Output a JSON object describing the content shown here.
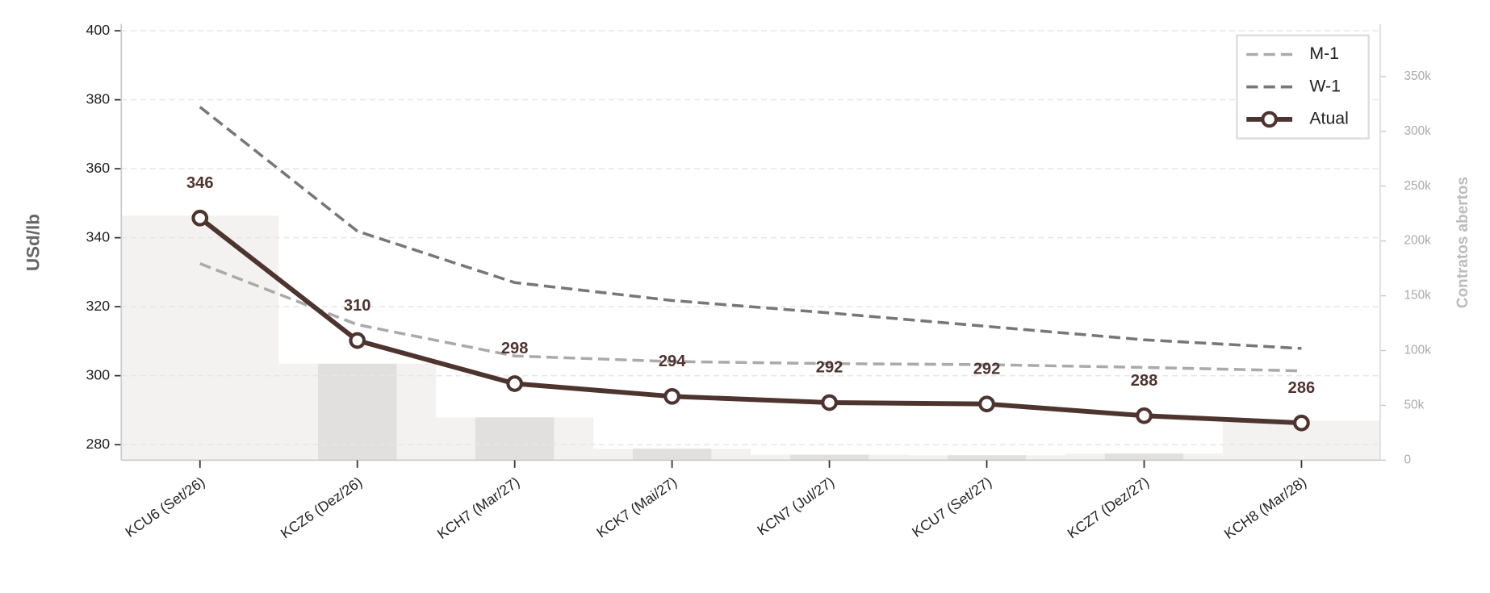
{
  "chart_data": {
    "type": "line",
    "y_label": "USd/lb",
    "y2_label": "Contratos abertos",
    "categories": [
      "KCU6 (Set/26)",
      "KCZ6 (Dez/26)",
      "KCH7 (Mar/27)",
      "KCK7 (Mai/27)",
      "KCN7 (Jul/27)",
      "KCU7 (Set/27)",
      "KCZ7 (Dez/27)",
      "KCH8 (Mar/28)"
    ],
    "series": [
      {
        "name": "M-1",
        "color": "#aaaaaa",
        "dashed": true,
        "values": [
          332.5,
          314.8,
          305.7,
          304.1,
          303.5,
          303.2,
          302.4,
          301.4
        ]
      },
      {
        "name": "W-1",
        "color": "#777777",
        "dashed": true,
        "values": [
          377.9,
          341.9,
          327.0,
          321.8,
          318.2,
          314.3,
          310.4,
          307.9
        ]
      },
      {
        "name": "Atual",
        "color": "#4e342e",
        "markers": true,
        "values": [
          345.7,
          310.2,
          297.7,
          294.0,
          292.2,
          291.8,
          288.4,
          286.3
        ],
        "value_labels": [
          "346",
          "310",
          "298",
          "294",
          "292",
          "292",
          "288",
          "286"
        ]
      }
    ],
    "open_interest": {
      "axis": "y2",
      "color": "#e2e0de",
      "area_color": "#f4f2f0",
      "values": [
        223000,
        88000,
        39000,
        10500,
        5000,
        4500,
        6000,
        36000
      ]
    },
    "ylim": [
      275.5,
      402
    ],
    "yticks": [
      280,
      300,
      320,
      340,
      360,
      380,
      400
    ],
    "y2lim": [
      0,
      398000
    ],
    "y2ticks": [
      0,
      {
        "value": 50000,
        "label": "50k"
      },
      {
        "value": 100000,
        "label": "100k"
      },
      {
        "value": 150000,
        "label": "150k"
      },
      {
        "value": 200000,
        "label": "200k"
      },
      {
        "value": 250000,
        "label": "250k"
      },
      {
        "value": 300000,
        "label": "300k"
      },
      {
        "value": 350000,
        "label": "350k"
      }
    ],
    "grid": true,
    "legend": "upper right"
  }
}
